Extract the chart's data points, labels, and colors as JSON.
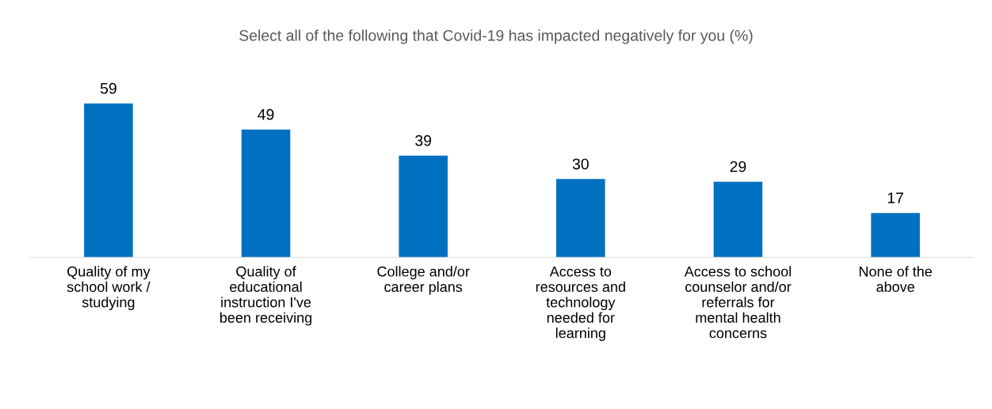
{
  "chart_data": {
    "type": "bar",
    "title": "Select all of the following that Covid-19 has impacted negatively for you (%)",
    "categories": [
      "Quality of my\nschool work /\nstudying",
      "Quality of\neducational\ninstruction I've\nbeen receiving",
      "College and/or\ncareer plans",
      "Access to\nresources and\ntechnology\nneeded for\nlearning",
      "Access to school\ncounselor and/or\nreferrals for\nmental health\nconcerns",
      "None of the\nabove"
    ],
    "values": [
      59,
      49,
      39,
      30,
      29,
      17
    ],
    "color": "#0070c0",
    "data_labels": true,
    "grid": false,
    "legend": false
  }
}
